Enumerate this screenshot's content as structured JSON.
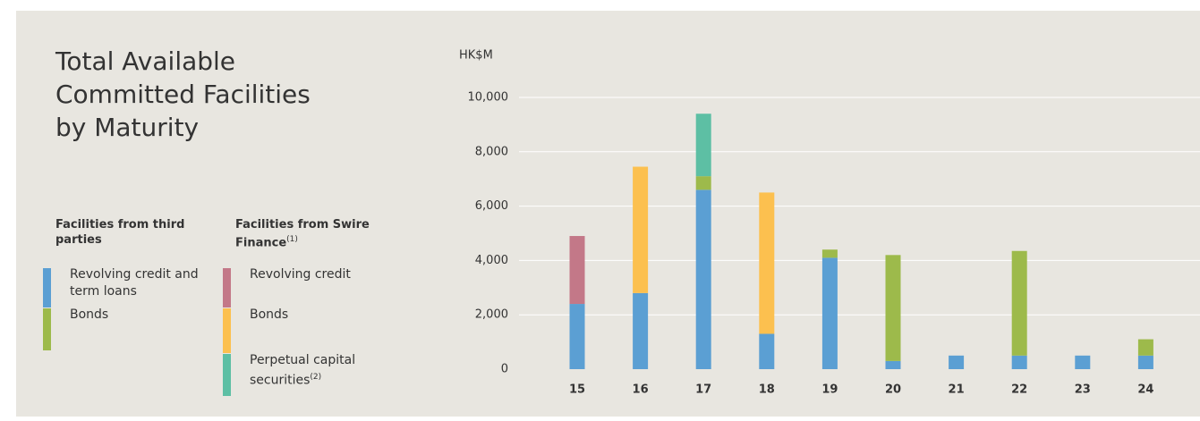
{
  "chart_data": {
    "type": "bar",
    "stacked": true,
    "title": "Total Available Committed Facilities by Maturity",
    "y_label": "HK$M",
    "categories": [
      "15",
      "16",
      "17",
      "18",
      "19",
      "20",
      "21",
      "22",
      "23",
      "24"
    ],
    "groups": [
      {
        "title": "Facilities from third parties"
      },
      {
        "title": "Facilities from Swire Finance",
        "note": "(1)"
      }
    ],
    "series": [
      {
        "name": "Revolving credit and term loans",
        "group": 0,
        "color": "#5b9fd3",
        "values": [
          2400,
          2800,
          6600,
          1300,
          4100,
          300,
          500,
          500,
          500,
          500
        ]
      },
      {
        "name": "Bonds",
        "group": 0,
        "color": "#9dba4b",
        "values": [
          null,
          null,
          500,
          null,
          300,
          3900,
          null,
          3850,
          null,
          600
        ]
      },
      {
        "name": "Revolving credit",
        "group": 1,
        "color": "#c37888",
        "values": [
          2500,
          null,
          null,
          null,
          null,
          null,
          null,
          null,
          null,
          null
        ]
      },
      {
        "name": "Bonds",
        "group": 1,
        "color": "#fcc04f",
        "values": [
          null,
          4650,
          null,
          5200,
          null,
          null,
          null,
          null,
          null,
          null
        ]
      },
      {
        "name": "Perpetual capital securities",
        "note": "(2)",
        "group": 1,
        "color": "#5dbfa4",
        "values": [
          null,
          null,
          2300,
          null,
          null,
          null,
          null,
          null,
          null,
          null
        ]
      }
    ],
    "ylim": [
      0,
      10000
    ],
    "yticks": [
      0,
      {
        "value": 2000,
        "label": "2,000"
      },
      {
        "value": 4000,
        "label": "4,000"
      },
      {
        "value": 6000,
        "label": "6,000"
      },
      {
        "value": 8000,
        "label": "8,000"
      },
      {
        "value": 10000,
        "label": "10,000"
      }
    ],
    "grid": true
  }
}
